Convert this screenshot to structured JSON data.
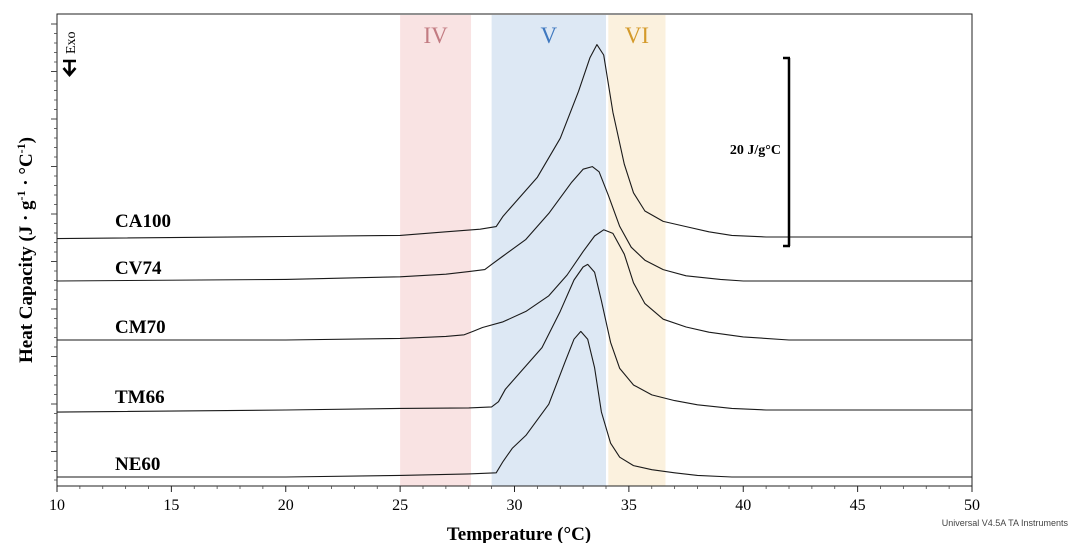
{
  "chart_data": {
    "type": "line",
    "xlabel": "Temperature (°C)",
    "ylabel": "Heat Capacity (J · g-1 · °C-1)",
    "ylabel_parts": [
      {
        "t": "Heat Capacity (J · g",
        "sup": false
      },
      {
        "t": "-1",
        "sup": true
      },
      {
        "t": " · °C",
        "sup": false
      },
      {
        "t": "-1",
        "sup": true
      },
      {
        "t": ")",
        "sup": false
      }
    ],
    "xlim": [
      10,
      50
    ],
    "xticks": [
      "10",
      "15",
      "20",
      "25",
      "30",
      "35",
      "40",
      "45",
      "50"
    ],
    "exo_label": "Exo",
    "footer": "Universal V4.5A TA Instruments",
    "scale_bar": {
      "label": "20 J/g°C",
      "x": 42
    },
    "bands": [
      {
        "label": "IV",
        "x0": 25.0,
        "x1": 28.1,
        "color": "#f9e3e3",
        "label_color": "#c27b82"
      },
      {
        "label": "V",
        "x0": 29.0,
        "x1": 34.0,
        "color": "#dde8f4",
        "label_color": "#3f78bf"
      },
      {
        "label": "VI",
        "x0": 34.1,
        "x1": 36.6,
        "color": "#fbf1de",
        "label_color": "#d49a2a"
      }
    ],
    "series": [
      {
        "name": "CA100",
        "x": [
          10,
          20,
          25,
          27,
          28.5,
          29.2,
          29.5,
          30,
          31,
          32,
          32.8,
          33.3,
          33.6,
          33.9,
          34.3,
          34.8,
          35.2,
          35.7,
          36.5,
          37.5,
          38.5,
          39.5,
          41,
          43,
          50
        ],
        "y": [
          -0.3,
          0.1,
          0.3,
          1.0,
          1.5,
          2.0,
          4.0,
          6.5,
          11.5,
          19.0,
          28.0,
          34.5,
          37.0,
          35.0,
          24.0,
          14.0,
          8.5,
          5.0,
          3.0,
          2.0,
          1.0,
          0.3,
          0.0,
          0.0,
          0.0
        ]
      },
      {
        "name": "CV74",
        "x": [
          10,
          20,
          25,
          27,
          28,
          28.7,
          29.0,
          29.5,
          30.5,
          31.5,
          32.5,
          33.0,
          33.4,
          33.7,
          34.1,
          34.6,
          35.1,
          35.7,
          36.5,
          37.5,
          39,
          40,
          42,
          50
        ],
        "y": [
          0.0,
          0.3,
          0.8,
          1.3,
          1.8,
          2.2,
          3.2,
          4.8,
          8.0,
          13.0,
          19.0,
          21.5,
          22.0,
          21.0,
          16.5,
          10.5,
          6.5,
          4.0,
          2.2,
          1.0,
          0.3,
          0.0,
          0.0,
          0.0
        ]
      },
      {
        "name": "CM70",
        "x": [
          10,
          20,
          25,
          27,
          27.8,
          28.2,
          28.6,
          29.5,
          30.5,
          31.5,
          32.3,
          33.0,
          33.5,
          33.9,
          34.3,
          34.8,
          35.2,
          35.7,
          36.5,
          37.5,
          38.5,
          40,
          42,
          50
        ],
        "y": [
          0.0,
          0.0,
          0.3,
          0.7,
          1.0,
          1.7,
          2.4,
          3.5,
          5.5,
          8.5,
          12.5,
          17.0,
          20.0,
          21.2,
          20.5,
          16.5,
          11.0,
          7.0,
          4.0,
          2.5,
          1.5,
          0.6,
          0.0,
          0.0
        ]
      },
      {
        "name": "TM66",
        "x": [
          10,
          20,
          25,
          28,
          29,
          29.3,
          29.6,
          30.2,
          31.2,
          32.0,
          32.6,
          33.0,
          33.2,
          33.5,
          33.8,
          34.2,
          34.6,
          35.2,
          36.0,
          37,
          38,
          39.5,
          41,
          50
        ],
        "y": [
          -0.4,
          0.0,
          0.3,
          0.4,
          0.6,
          1.6,
          4.0,
          7.0,
          12.0,
          19.0,
          25.0,
          27.5,
          28.0,
          26.5,
          21.0,
          13.0,
          8.0,
          4.8,
          2.9,
          1.8,
          1.0,
          0.3,
          0.0,
          0.0
        ]
      },
      {
        "name": "NE60",
        "x": [
          10,
          20,
          25,
          28,
          29.2,
          29.5,
          29.9,
          30.5,
          31.5,
          32.2,
          32.6,
          32.9,
          33.2,
          33.5,
          33.8,
          34.2,
          34.6,
          35.2,
          36.0,
          37,
          38,
          39.5,
          50
        ],
        "y": [
          0.0,
          0.0,
          0.3,
          0.6,
          0.8,
          3.0,
          5.5,
          8.0,
          14.0,
          22.0,
          26.5,
          28.0,
          26.5,
          21.0,
          12.5,
          6.5,
          3.8,
          2.2,
          1.4,
          0.8,
          0.3,
          0.0,
          0.0
        ]
      }
    ]
  }
}
